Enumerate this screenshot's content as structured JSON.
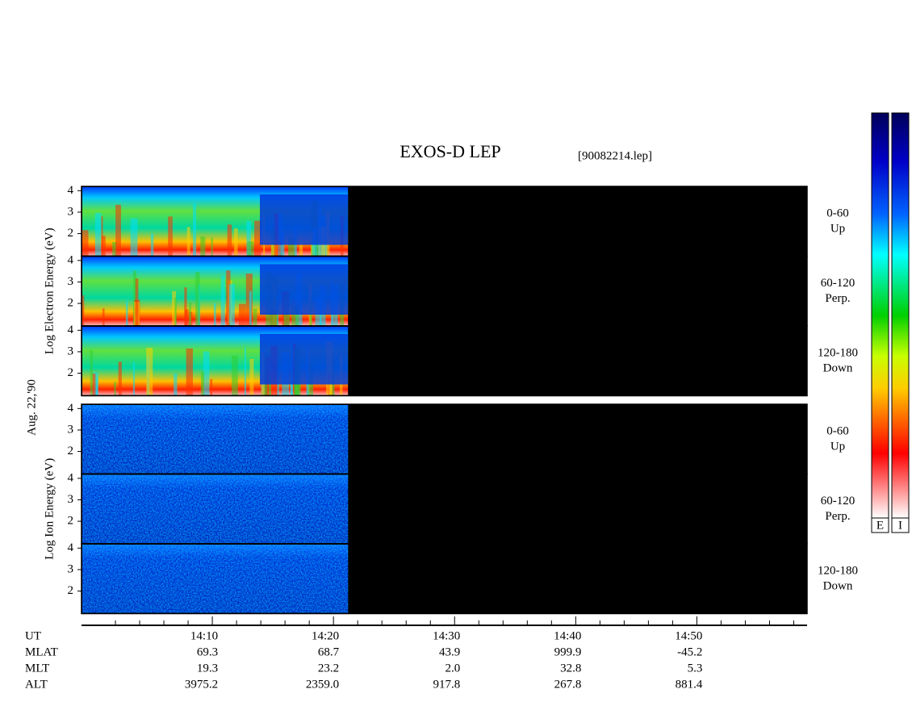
{
  "title": "EXOS-D LEP",
  "file": "[90082214.lep]",
  "date": "Aug. 22,'90",
  "groups": [
    {
      "ylabel": "Log Electron Energy (eV)",
      "kind": "electron",
      "ylim": [
        0.95,
        4.2
      ],
      "yticks": [
        2,
        3,
        4
      ],
      "panels": [
        {
          "label": [
            "0-60",
            "Up"
          ]
        },
        {
          "label": [
            "60-120",
            "Perp."
          ]
        },
        {
          "label": [
            "120-180",
            "Down"
          ]
        }
      ]
    },
    {
      "ylabel": "Log Ion Energy (eV)",
      "kind": "ion",
      "ylim": [
        0.95,
        4.2
      ],
      "yticks": [
        2,
        3,
        4
      ],
      "panels": [
        {
          "label": [
            "0-60",
            "Up"
          ]
        },
        {
          "label": [
            "60-120",
            "Perp."
          ]
        },
        {
          "label": [
            "120-180",
            "Down"
          ]
        }
      ]
    }
  ],
  "time_axis": {
    "xlim": [
      839.2,
      899.1
    ],
    "data_end": 861.2,
    "ticks": [
      {
        "value": 850,
        "label": "14:10"
      },
      {
        "value": 860,
        "label": "14:20"
      },
      {
        "value": 870,
        "label": "14:30"
      },
      {
        "value": 880,
        "label": "14:40"
      },
      {
        "value": 890,
        "label": "14:50"
      }
    ],
    "minor_ticks": [
      842,
      844,
      846,
      848,
      852,
      854,
      856,
      858,
      862,
      864,
      866,
      868,
      872,
      874,
      876,
      878,
      882,
      884,
      886,
      888,
      892,
      894,
      896,
      898
    ]
  },
  "ephemeris": {
    "ut_label": "UT",
    "rows": [
      {
        "name": "MLAT",
        "values": [
          "69.3",
          "68.7",
          "43.9",
          "999.9",
          "-45.2"
        ]
      },
      {
        "name": "MLT",
        "values": [
          "19.3",
          "23.2",
          "2.0",
          "32.8",
          "5.3"
        ]
      },
      {
        "name": "ALT",
        "values": [
          "3975.2",
          "2359.0",
          "917.8",
          "267.8",
          "881.4"
        ]
      }
    ]
  },
  "colorbar_labels": [
    "E",
    "I"
  ]
}
